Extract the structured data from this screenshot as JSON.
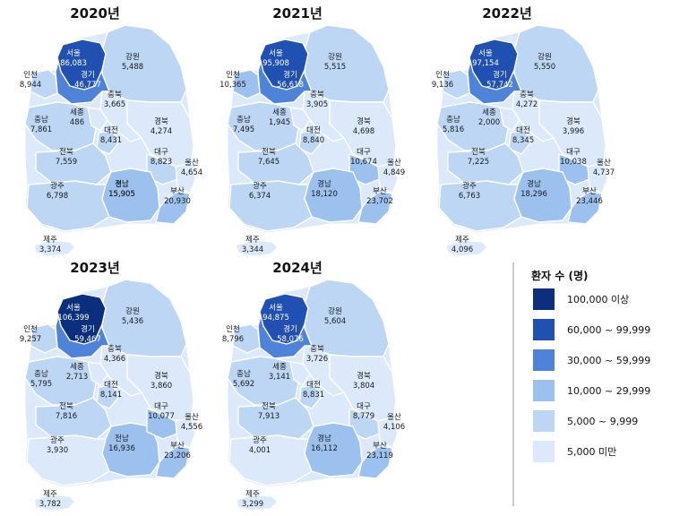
{
  "legend": {
    "title": "환자 수 (명)",
    "classes": [
      {
        "label": "100,000 이상",
        "min": 100000,
        "color": "#0b2f7d"
      },
      {
        "label": "60,000 ~ 99,999",
        "min": 60000,
        "color": "#2150b3"
      },
      {
        "label": "30,000 ~ 59,999",
        "min": 30000,
        "color": "#4f83d9"
      },
      {
        "label": "10,000 ~ 29,999",
        "min": 10000,
        "color": "#9cc1ef"
      },
      {
        "label": "5,000 ~ 9,999",
        "min": 5000,
        "color": "#bcd6f4"
      },
      {
        "label": "5,000 미만",
        "min": 0,
        "color": "#dbe9fa"
      }
    ]
  },
  "maps": [
    {
      "year": "2020년",
      "values": {
        "서울": "86,083",
        "경기": "46,777",
        "인천": "8,944",
        "강원": "5,488",
        "충북": "3,665",
        "세종": "486",
        "충남": "7,861",
        "대전": "8,431",
        "경북": "4,274",
        "대구": "8,823",
        "전북": "7,559",
        "울산": "4,654",
        "광주": "6,798",
        "전남": "15,905",
        "경남": "15,905",
        "부산": "20,930",
        "제주": "3,374"
      }
    },
    {
      "year": "2021년",
      "values": {
        "서울": "95,908",
        "경기": "56,618",
        "인천": "10,365",
        "강원": "5,515",
        "충북": "3,905",
        "세종": "1,945",
        "충남": "7,495",
        "대전": "8,840",
        "경북": "4,698",
        "대구": "10,674",
        "전북": "7,645",
        "울산": "4,849",
        "광주": "6,374",
        "경남": "18,120",
        "부산": "23,702",
        "제주": "3,344"
      }
    },
    {
      "year": "2022년",
      "values": {
        "서울": "97,154",
        "경기": "57,742",
        "인천": "9,136",
        "강원": "5,550",
        "충북": "4,272",
        "세종": "2,000",
        "충남": "5,816",
        "대전": "8,345",
        "경북": "3,996",
        "대구": "10,038",
        "전북": "7,225",
        "울산": "4,737",
        "광주": "6,763",
        "경남": "18,296",
        "부산": "23,446",
        "제주": "4,096"
      }
    },
    {
      "year": "2023년",
      "values": {
        "서울": "106,399",
        "경기": "59,467",
        "인천": "9,257",
        "강원": "5,436",
        "충북": "4,366",
        "세종": "2,713",
        "충남": "5,795",
        "대전": "8,141",
        "경북": "3,860",
        "대구": "10,077",
        "전북": "7,816",
        "울산": "4,556",
        "광주": "3,930",
        "전남": "16,936",
        "부산": "23,206",
        "제주": "3,782"
      }
    },
    {
      "year": "2024년",
      "values": {
        "서울": "94,875",
        "경기": "58,076",
        "인천": "8,796",
        "강원": "5,604",
        "충북": "3,726",
        "세종": "3,141",
        "충남": "5,692",
        "대전": "8,831",
        "경북": "3,804",
        "대구": "8,779",
        "전북": "7,913",
        "울산": "4,106",
        "광주": "4,001",
        "경남": "16,112",
        "부산": "23,119",
        "제주": "3,299"
      }
    }
  ]
}
